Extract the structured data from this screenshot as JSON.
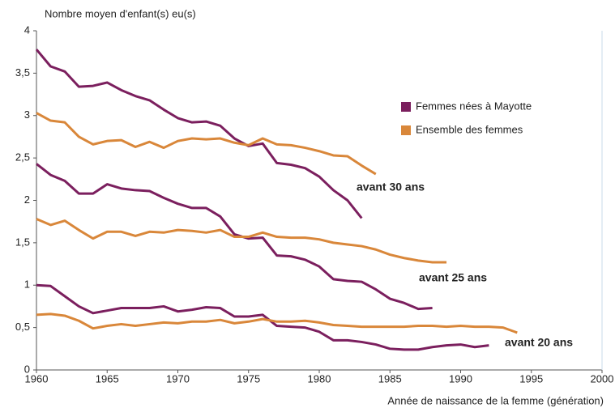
{
  "chart_data": {
    "type": "line",
    "y_label": "Nombre moyen d'enfant(s) eu(s)",
    "x_label": "Année de naissance de la femme (génération)",
    "x": [
      1960,
      1961,
      1962,
      1963,
      1964,
      1965,
      1966,
      1967,
      1968,
      1969,
      1970,
      1971,
      1972,
      1973,
      1974,
      1975,
      1976,
      1977,
      1978,
      1979,
      1980,
      1981,
      1982,
      1983,
      1984,
      1985,
      1986,
      1987,
      1988,
      1989,
      1990,
      1991,
      1992,
      1993,
      1994
    ],
    "xlim": [
      1960,
      2000
    ],
    "xticks": [
      1960,
      1965,
      1970,
      1975,
      1980,
      1985,
      1990,
      1995,
      2000
    ],
    "ylim": [
      0,
      4
    ],
    "yticks": [
      0,
      {
        "value": 0.5,
        "label": "0,5"
      },
      1,
      {
        "value": 1.5,
        "label": "1,5"
      },
      2,
      {
        "value": 2.5,
        "label": "2,5"
      },
      3,
      {
        "value": 3.5,
        "label": "3,5"
      },
      4
    ],
    "series": [
      {
        "name": "Femmes nées à Mayotte",
        "color": "#7b1f5e",
        "values": [
          3.78,
          3.58,
          3.52,
          3.34,
          3.35,
          3.39,
          3.3,
          3.23,
          3.18,
          3.07,
          2.97,
          2.92,
          2.93,
          2.88,
          2.73,
          2.64,
          2.67,
          2.44,
          2.42,
          2.38,
          2.28,
          2.12,
          2.0,
          1.79,
          null,
          null,
          null,
          null,
          null,
          null,
          null,
          null,
          null,
          null,
          null
        ]
      },
      {
        "name": "Ensemble des femmes",
        "color": "#d9873a",
        "values": [
          3.03,
          2.94,
          2.92,
          2.75,
          2.66,
          2.7,
          2.71,
          2.63,
          2.69,
          2.62,
          2.7,
          2.73,
          2.72,
          2.73,
          2.68,
          2.65,
          2.73,
          2.66,
          2.65,
          2.62,
          2.58,
          2.53,
          2.52,
          2.41,
          2.31,
          null,
          null,
          null,
          null,
          null,
          null,
          null,
          null,
          null,
          null
        ]
      },
      {
        "color": "#7b1f5e",
        "values": [
          2.43,
          2.3,
          2.23,
          2.08,
          2.08,
          2.19,
          2.14,
          2.12,
          2.11,
          2.03,
          1.96,
          1.91,
          1.91,
          1.81,
          1.6,
          1.55,
          1.56,
          1.35,
          1.34,
          1.3,
          1.22,
          1.07,
          1.05,
          1.04,
          0.95,
          0.84,
          0.79,
          0.72,
          0.73,
          null,
          null,
          null,
          null,
          null,
          null
        ]
      },
      {
        "color": "#d9873a",
        "values": [
          1.78,
          1.71,
          1.76,
          1.65,
          1.55,
          1.63,
          1.63,
          1.58,
          1.63,
          1.62,
          1.65,
          1.64,
          1.62,
          1.65,
          1.57,
          1.57,
          1.62,
          1.57,
          1.56,
          1.56,
          1.54,
          1.5,
          1.48,
          1.46,
          1.42,
          1.36,
          1.32,
          1.29,
          1.27,
          1.27,
          null,
          null,
          null,
          null,
          null
        ]
      },
      {
        "color": "#7b1f5e",
        "values": [
          1.0,
          0.99,
          0.87,
          0.75,
          0.67,
          0.7,
          0.73,
          0.73,
          0.73,
          0.75,
          0.69,
          0.71,
          0.74,
          0.73,
          0.63,
          0.63,
          0.65,
          0.52,
          0.51,
          0.5,
          0.45,
          0.35,
          0.35,
          0.33,
          0.3,
          0.25,
          0.24,
          0.24,
          0.27,
          0.29,
          0.3,
          0.27,
          0.29,
          null,
          null
        ]
      },
      {
        "color": "#d9873a",
        "values": [
          0.65,
          0.66,
          0.64,
          0.58,
          0.49,
          0.52,
          0.54,
          0.52,
          0.54,
          0.56,
          0.55,
          0.57,
          0.57,
          0.59,
          0.55,
          0.57,
          0.6,
          0.57,
          0.57,
          0.58,
          0.56,
          0.53,
          0.52,
          0.51,
          0.51,
          0.51,
          0.51,
          0.52,
          0.52,
          0.51,
          0.52,
          0.51,
          0.51,
          0.5,
          0.44
        ]
      }
    ],
    "annotations": [
      "avant 30 ans",
      "avant 25 ans",
      "avant 20 ans"
    ]
  }
}
